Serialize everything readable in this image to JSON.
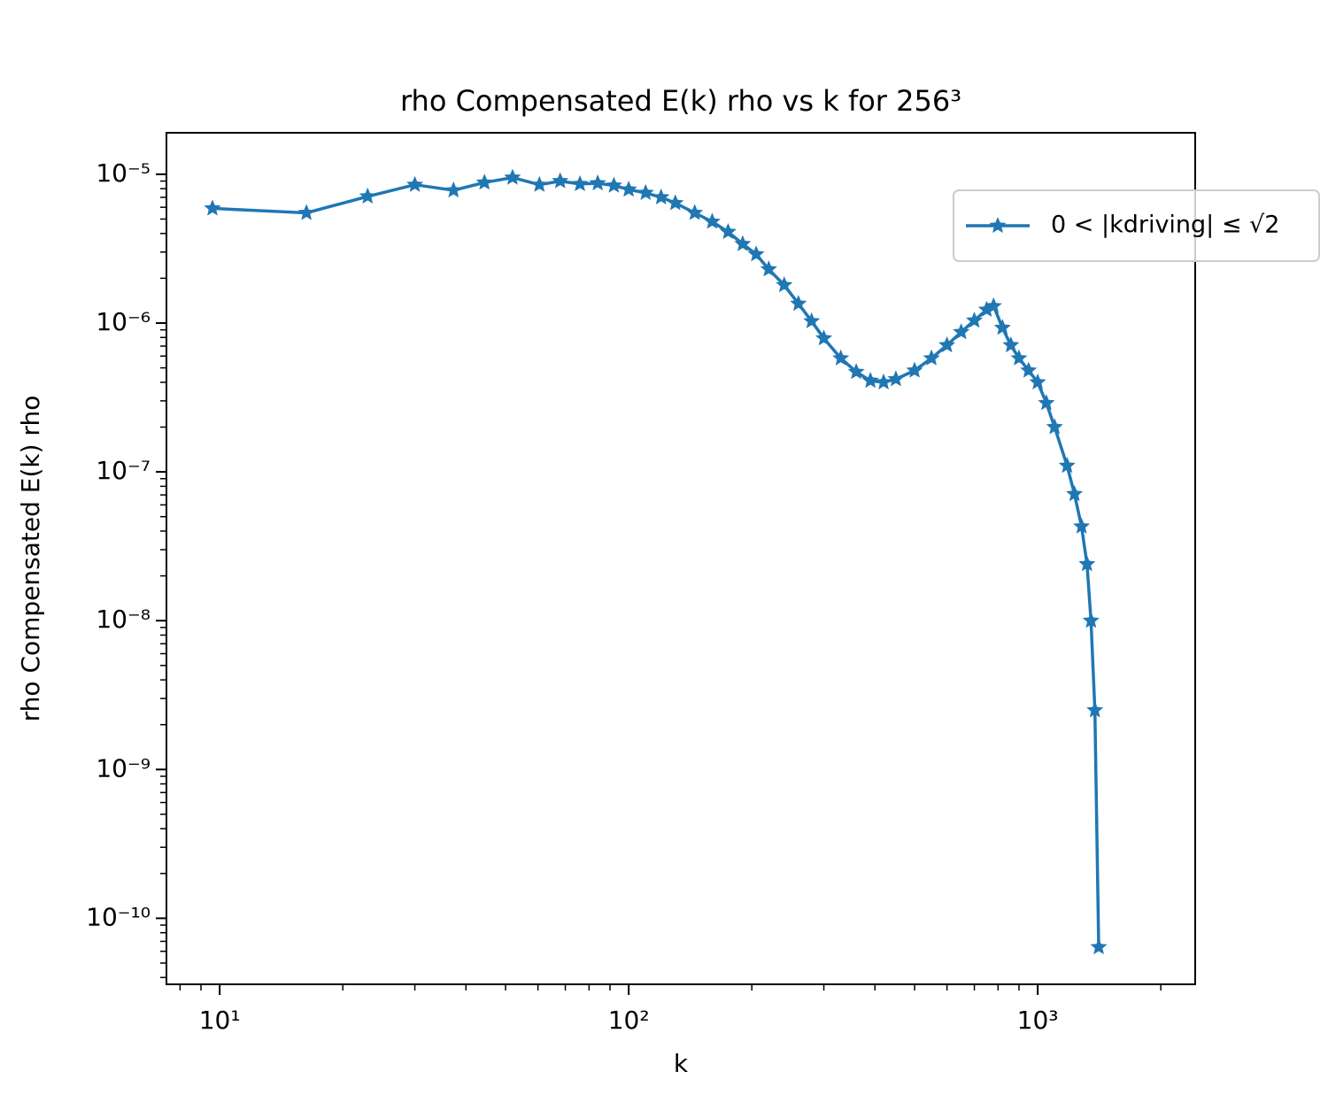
{
  "chart_data": {
    "type": "line",
    "title": "rho Compensated E(k) rho vs k for 256³",
    "xlabel": "k",
    "ylabel": "rho Compensated E(k) rho",
    "xscale": "log",
    "yscale": "log",
    "xlim": [
      7.41,
      2427
    ],
    "ylim": [
      3.6e-11,
      1.9e-05
    ],
    "xticks": [
      {
        "value": 10,
        "label": "10¹"
      },
      {
        "value": 100,
        "label": "10²"
      },
      {
        "value": 1000,
        "label": "10³"
      }
    ],
    "yticks": [
      {
        "value": 1e-10,
        "label": "10⁻¹⁰"
      },
      {
        "value": 1e-09,
        "label": "10⁻⁹"
      },
      {
        "value": 1e-08,
        "label": "10⁻⁸"
      },
      {
        "value": 1e-07,
        "label": "10⁻⁷"
      },
      {
        "value": 1e-06,
        "label": "10⁻⁶"
      },
      {
        "value": 1e-05,
        "label": "10⁻⁵"
      }
    ],
    "legend": "upper right",
    "series": [
      {
        "name": "0 < |kdriving| ≤ √2",
        "color": "#1f77b4",
        "x": [
          9.6,
          16.3,
          23,
          30,
          37.3,
          44.4,
          52,
          60.5,
          68,
          76,
          84,
          92,
          100,
          110,
          120,
          130,
          145,
          160,
          175,
          190,
          205,
          220,
          240,
          260,
          280,
          300,
          330,
          360,
          390,
          420,
          450,
          500,
          550,
          600,
          650,
          700,
          750,
          780,
          820,
          860,
          900,
          950,
          1000,
          1050,
          1100,
          1180,
          1230,
          1280,
          1320,
          1350,
          1380,
          1410
        ],
        "values": [
          5.9e-06,
          5.5e-06,
          7.1e-06,
          8.5e-06,
          7.8e-06,
          8.8e-06,
          9.5e-06,
          8.5e-06,
          9e-06,
          8.6e-06,
          8.7e-06,
          8.4e-06,
          7.9e-06,
          7.5e-06,
          7e-06,
          6.4e-06,
          5.5e-06,
          4.8e-06,
          4.1e-06,
          3.4e-06,
          2.9e-06,
          2.3e-06,
          1.8e-06,
          1.35e-06,
          1.03e-06,
          7.9e-07,
          5.8e-07,
          4.7e-07,
          4.1e-07,
          4e-07,
          4.2e-07,
          4.8e-07,
          5.8e-07,
          7.1e-07,
          8.7e-07,
          1.04e-06,
          1.23e-06,
          1.3e-06,
          9.3e-07,
          7.1e-07,
          5.8e-07,
          4.8e-07,
          4e-07,
          2.9e-07,
          2e-07,
          1.1e-07,
          7.1e-08,
          4.3e-08,
          2.4e-08,
          1e-08,
          2.5e-09,
          6.4e-11
        ]
      }
    ]
  }
}
